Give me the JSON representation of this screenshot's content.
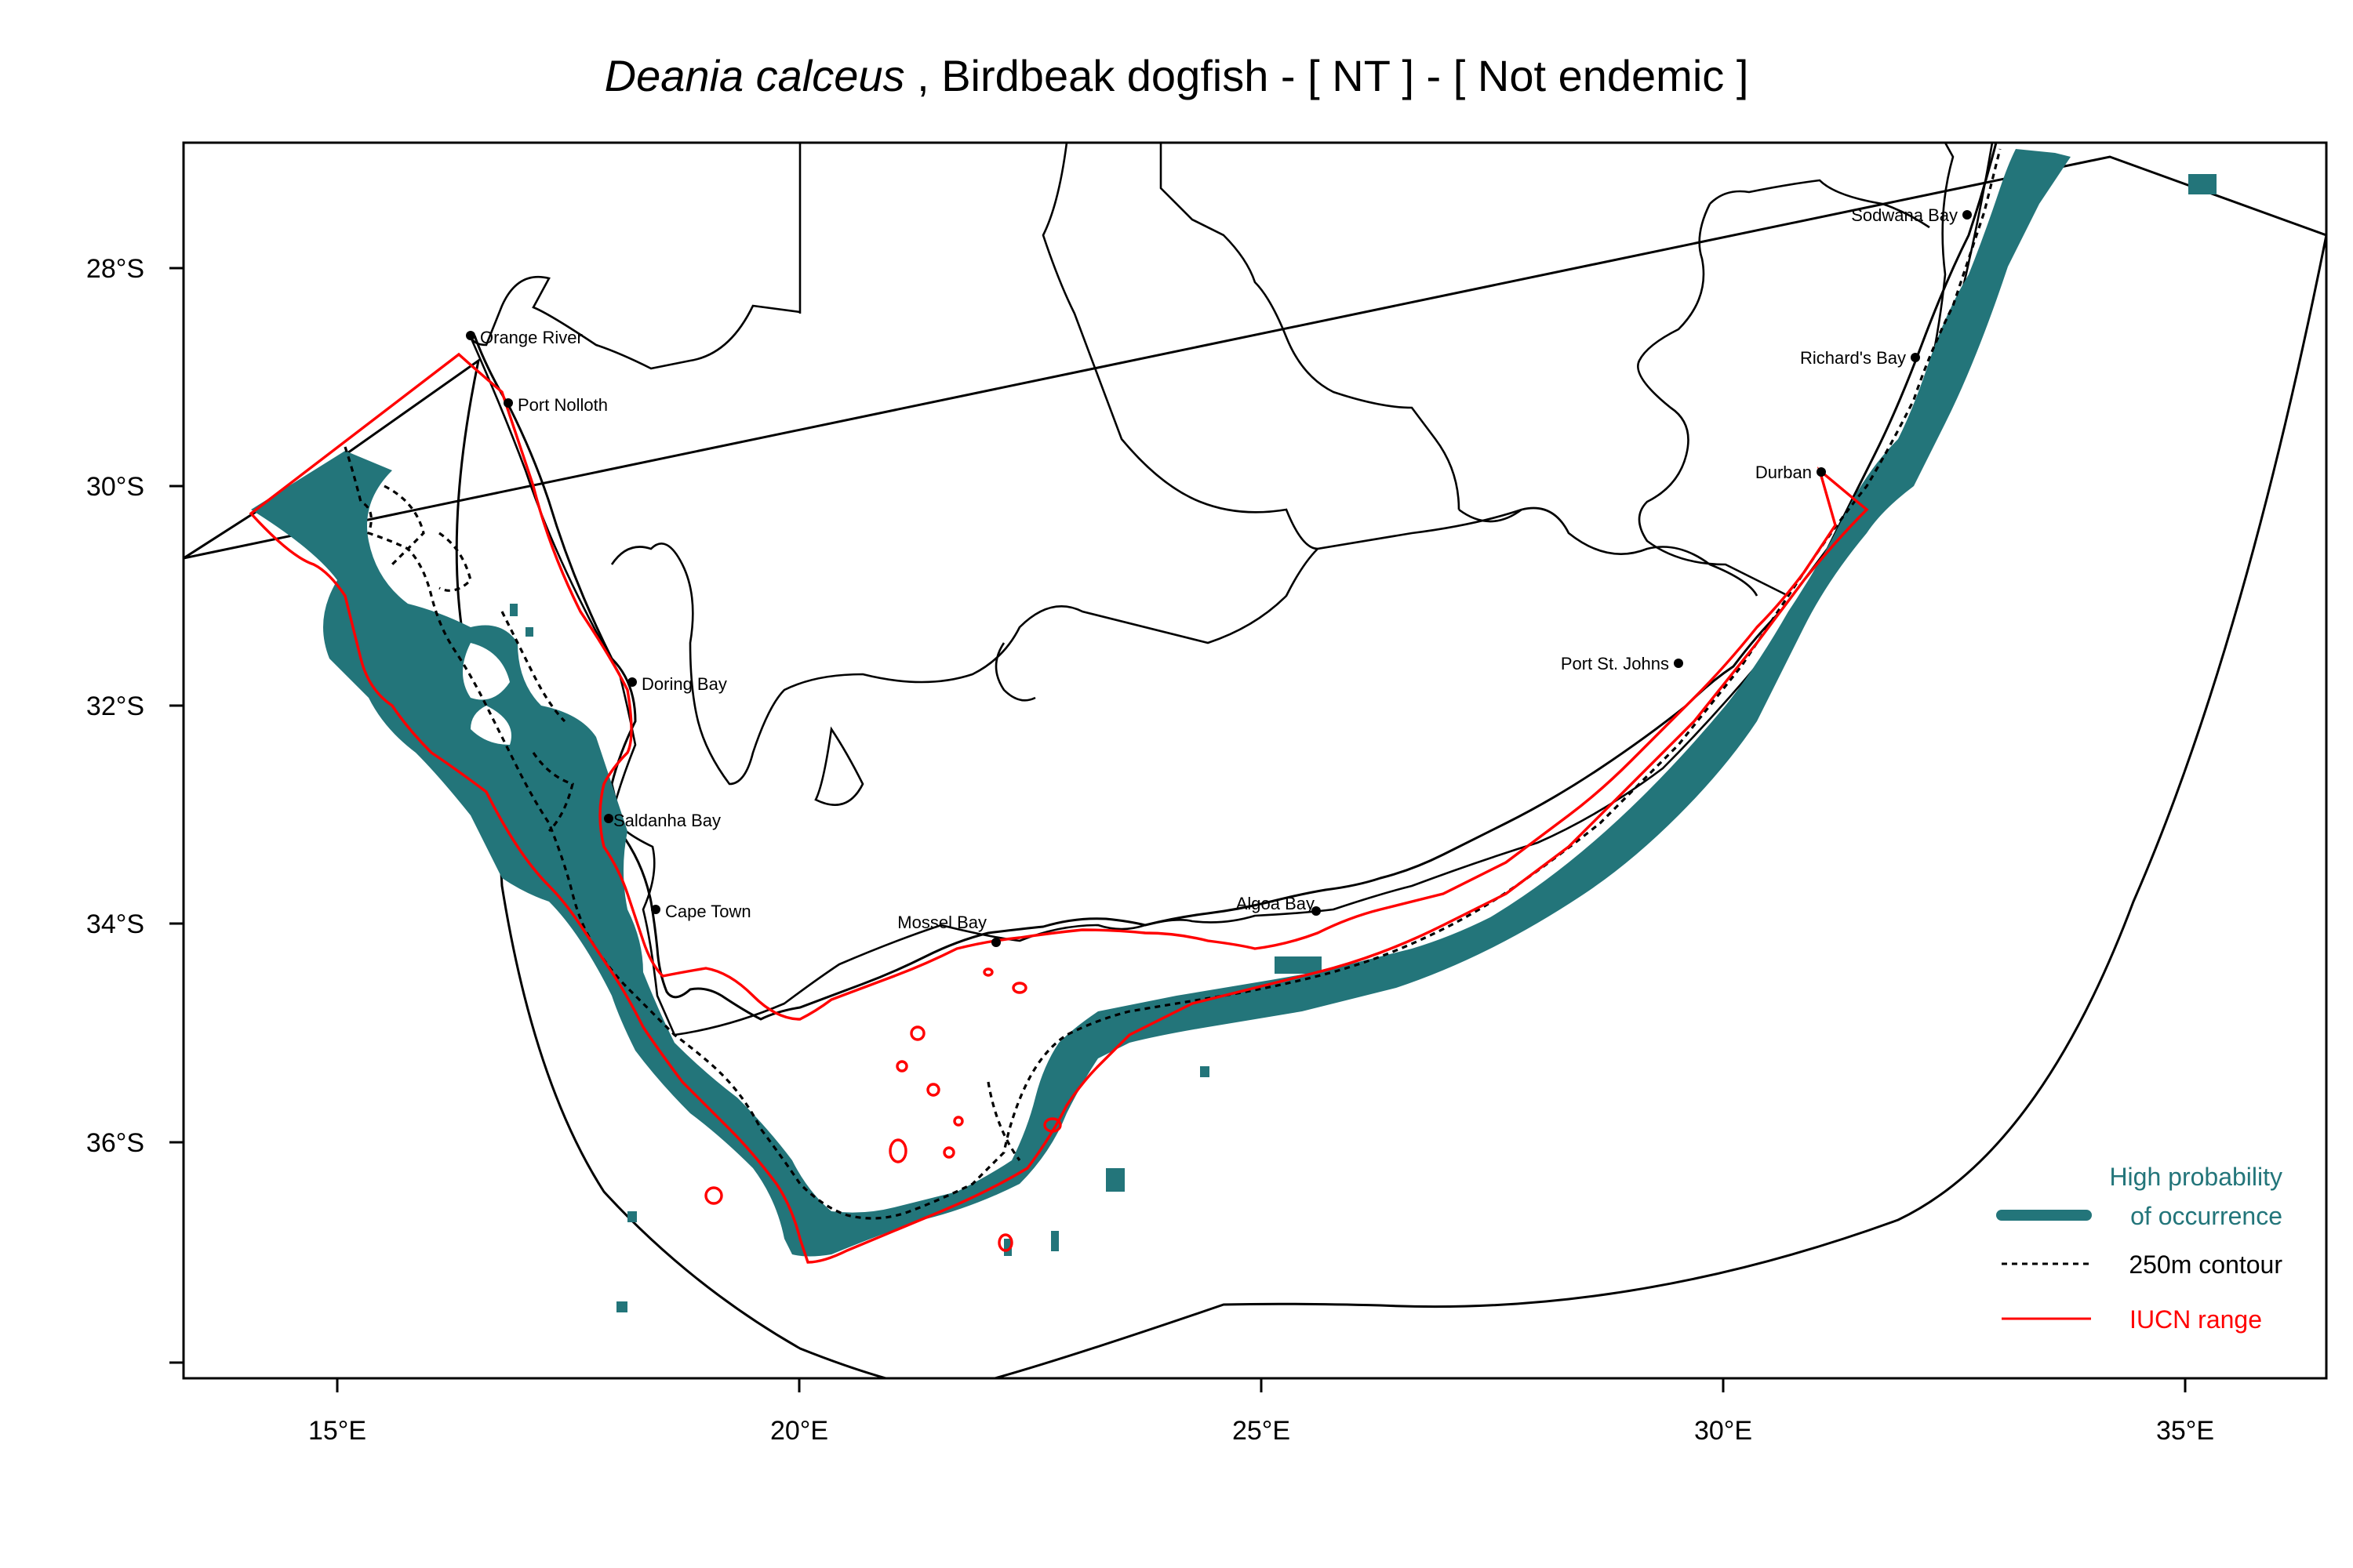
{
  "title": {
    "species": "Deania calceus",
    "rest": " , Birdbeak dogfish  - [ NT ] - [ Not endemic ]"
  },
  "axes": {
    "x_ticks": [
      "15°E",
      "20°E",
      "25°E",
      "30°E",
      "35°E"
    ],
    "y_ticks": [
      "28°S",
      "30°S",
      "32°S",
      "34°S",
      "36°S"
    ]
  },
  "places": [
    "Orange River",
    "Port Nolloth",
    "Doring Bay",
    "Saldanha Bay",
    "Cape Town",
    "Mossel Bay",
    "Algoa Bay",
    "Port St. Johns",
    "Durban",
    "Richard's Bay",
    "Sodwana Bay"
  ],
  "legend": {
    "occurrence_line1": "High probability",
    "occurrence_line2": "of occurrence",
    "contour": "250m contour",
    "iucn": "IUCN range"
  },
  "colors": {
    "occurrence": "#23757a",
    "iucn": "#ff0000",
    "contour": "#000000"
  }
}
